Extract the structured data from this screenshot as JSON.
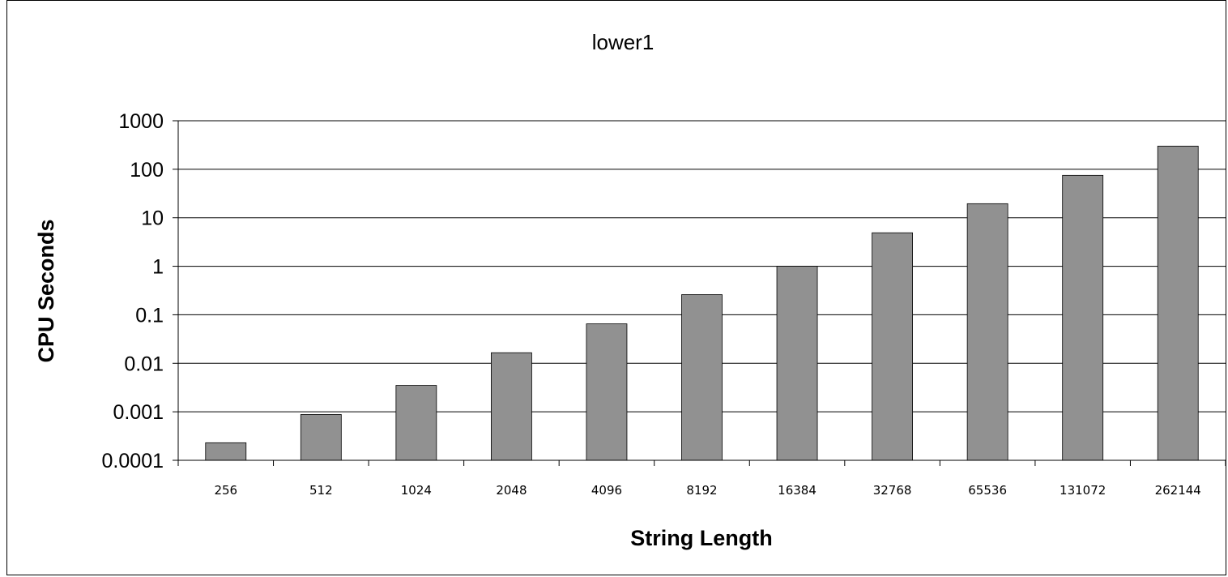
{
  "chart_data": {
    "type": "bar",
    "title": "lower1",
    "xlabel": "String Length",
    "ylabel": "CPU Seconds",
    "yscale": "log",
    "ylim": [
      0.0001,
      1000
    ],
    "yticks": [
      "1000",
      "100",
      "10",
      "1",
      "0.1",
      "0.01",
      "0.001",
      "0.0001"
    ],
    "categories": [
      "256",
      "512",
      "1024",
      "2048",
      "4096",
      "8192",
      "16384",
      "32768",
      "65536",
      "131072",
      "262144"
    ],
    "values": [
      0.00023,
      0.00088,
      0.0035,
      0.0165,
      0.065,
      0.26,
      1.0,
      4.9,
      19.5,
      75,
      300
    ],
    "bar_color": "#919191",
    "grid": true,
    "legend": "none"
  }
}
